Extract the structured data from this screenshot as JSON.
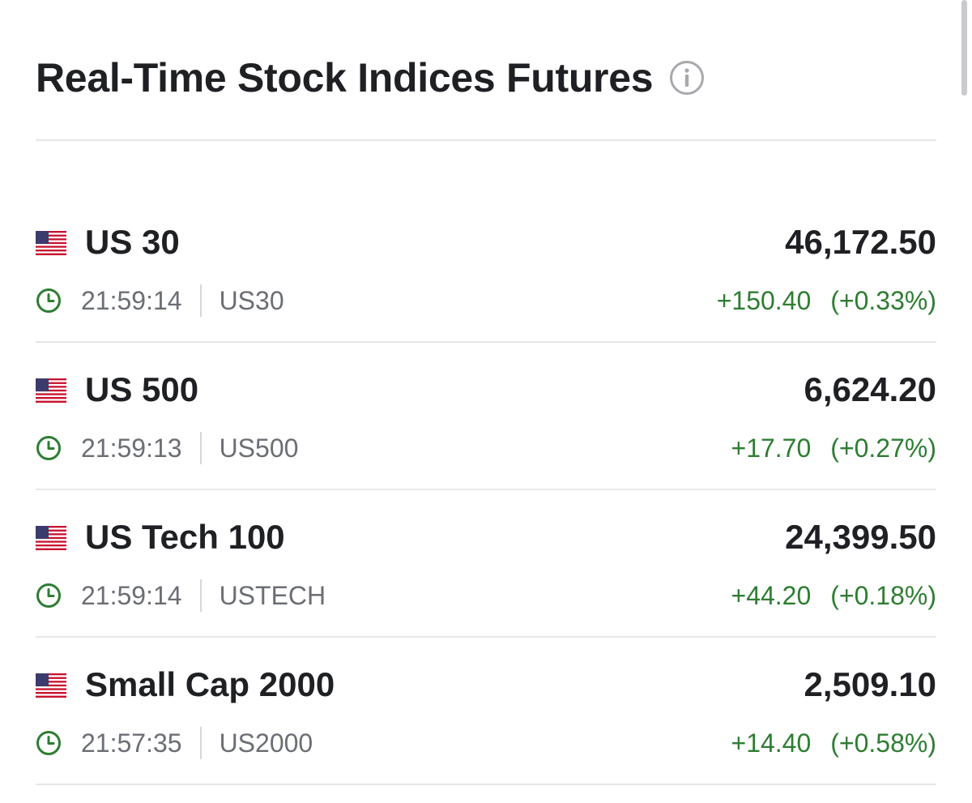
{
  "header": {
    "title": "Real-Time Stock Indices Futures",
    "info_icon": "info-circle-icon"
  },
  "colors": {
    "positive": "#2e7d32",
    "muted_text": "#6b6e74",
    "primary_text": "#1f2023",
    "divider": "#e6e7ea"
  },
  "rows": [
    {
      "flag": "us-flag-icon",
      "name": "US 30",
      "price": "46,172.50",
      "time": "21:59:14",
      "symbol": "US30",
      "change": "+150.40",
      "change_pct": "(+0.33%)"
    },
    {
      "flag": "us-flag-icon",
      "name": "US 500",
      "price": "6,624.20",
      "time": "21:59:13",
      "symbol": "US500",
      "change": "+17.70",
      "change_pct": "(+0.27%)"
    },
    {
      "flag": "us-flag-icon",
      "name": "US Tech 100",
      "price": "24,399.50",
      "time": "21:59:14",
      "symbol": "USTECH",
      "change": "+44.20",
      "change_pct": "(+0.18%)"
    },
    {
      "flag": "us-flag-icon",
      "name": "Small Cap 2000",
      "price": "2,509.10",
      "time": "21:57:35",
      "symbol": "US2000",
      "change": "+14.40",
      "change_pct": "(+0.58%)"
    }
  ]
}
